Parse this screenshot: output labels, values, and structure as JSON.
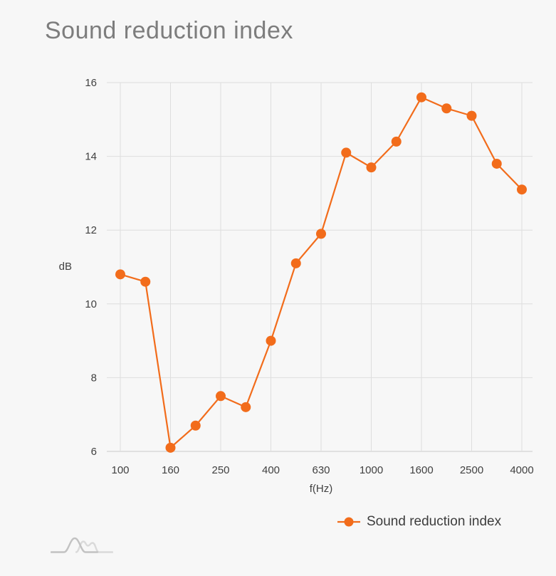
{
  "title": "Sound reduction index",
  "legend": {
    "label": "Sound reduction index"
  },
  "theme": {
    "background": "#f7f7f7",
    "series_color": "#f26c1b",
    "grid_color": "#dedede",
    "axis_color": "#c9c9c9",
    "title_color": "#7d7d7d",
    "label_color": "#414141",
    "legend_text_color": "#3d3d3d",
    "logo_dark": "#c2c2c2",
    "logo_light": "#dadada"
  },
  "chart_data": {
    "type": "line",
    "title": "Sound reduction index",
    "series_name": "Sound reduction index",
    "xlabel": "f(Hz)",
    "ylabel": "dB",
    "categories": [
      "100",
      "125",
      "160",
      "200",
      "250",
      "315",
      "400",
      "500",
      "630",
      "800",
      "1000",
      "1250",
      "1600",
      "2000",
      "2500",
      "3150",
      "4000"
    ],
    "values": [
      10.8,
      10.6,
      6.1,
      6.7,
      7.5,
      7.2,
      9.0,
      11.1,
      11.9,
      14.1,
      13.7,
      14.4,
      15.6,
      15.3,
      15.1,
      13.8,
      13.1
    ],
    "x_tick_labels": [
      "100",
      "160",
      "250",
      "400",
      "630",
      "1000",
      "1600",
      "2500",
      "4000"
    ],
    "y_ticks": [
      6,
      8,
      10,
      12,
      14,
      16
    ],
    "ylim": [
      6,
      16
    ],
    "grid": true,
    "legend_position": "bottom-right",
    "marker": "circle"
  }
}
